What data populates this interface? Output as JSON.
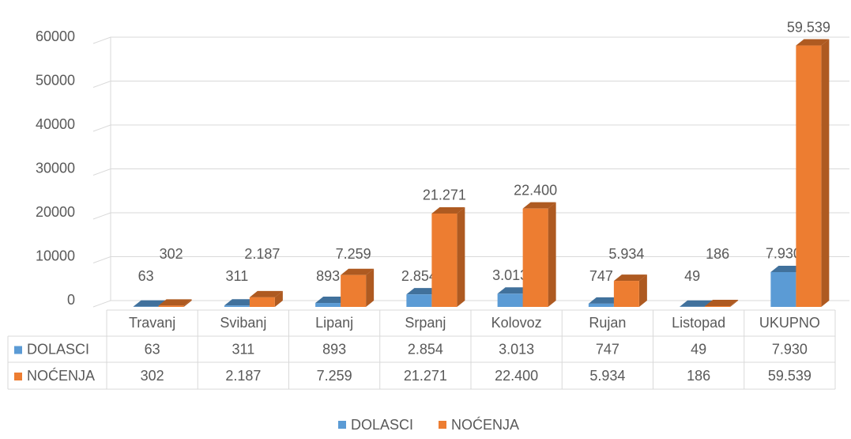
{
  "chart_data": {
    "type": "bar3d",
    "categories": [
      "Travanj",
      "Svibanj",
      "Lipanj",
      "Srpanj",
      "Kolovoz",
      "Rujan",
      "Listopad",
      "UKUPNO"
    ],
    "series": [
      {
        "name": "DOLASCI",
        "color": "#5b9bd5",
        "side_color": "#41719c",
        "values": [
          63,
          311,
          893,
          2854,
          3013,
          747,
          49,
          7930
        ],
        "value_labels": [
          "63",
          "311",
          "893",
          "2.854",
          "3.013",
          "747",
          "49",
          "7.930"
        ]
      },
      {
        "name": "NOĆENJA",
        "color": "#ed7d31",
        "side_color": "#ae5a21",
        "values": [
          302,
          2187,
          7259,
          21271,
          22400,
          5934,
          186,
          59539
        ],
        "value_labels": [
          "302",
          "2.187",
          "7.259",
          "21.271",
          "22.400",
          "5.934",
          "186",
          "59.539"
        ]
      }
    ],
    "ylim": [
      0,
      60000
    ],
    "yticks": [
      0,
      10000,
      20000,
      30000,
      40000,
      50000,
      60000
    ],
    "grid": true,
    "data_table": true,
    "legend": "bottom"
  }
}
